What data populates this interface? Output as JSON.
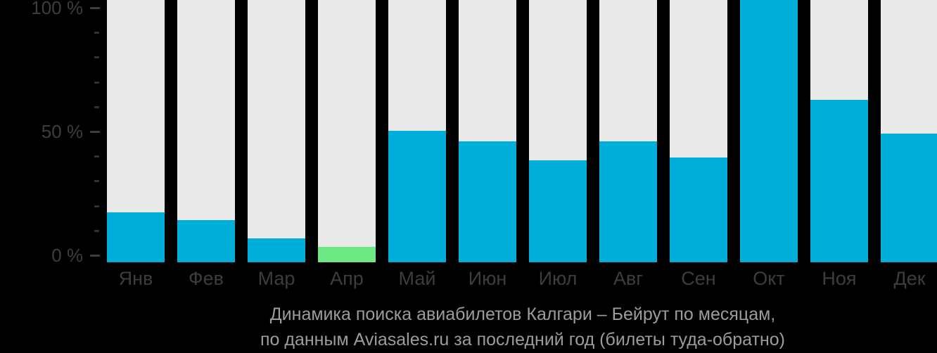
{
  "chart_data": {
    "type": "bar",
    "categories": [
      "Янв",
      "Фев",
      "Мар",
      "Апр",
      "Май",
      "Июн",
      "Июл",
      "Авг",
      "Сен",
      "Окт",
      "Ноя",
      "Дек"
    ],
    "values": [
      19,
      16,
      9,
      6,
      50,
      46,
      39,
      46,
      40,
      100,
      62,
      49
    ],
    "unit": "%",
    "ylim": [
      0,
      100
    ],
    "grid": false,
    "legend": "none",
    "highlight": {
      "index": 3,
      "color": "#6de884"
    },
    "yticks_major": [
      {
        "value": 0,
        "label": "0 %"
      },
      {
        "value": 50,
        "label": "50 %"
      },
      {
        "value": 100,
        "label": "100 %"
      }
    ],
    "yticks_minor": [
      10,
      20,
      30,
      40,
      60,
      70,
      80,
      90
    ],
    "caption_lines": [
      "Динамика поиска авиабилетов Калгари – Бейрут по месяцам,",
      "по данным Aviasales.ru за последний год (билеты туда-обратно)"
    ],
    "colors": {
      "background": "#000000",
      "track": "#e9e9e9",
      "bar": "#00aeda",
      "highlight": "#6de884",
      "axis_text": "#3d3d3d",
      "tick": "#3d3d3d",
      "tick_minor": "#333333",
      "caption_text": "#9c9c9c"
    }
  }
}
